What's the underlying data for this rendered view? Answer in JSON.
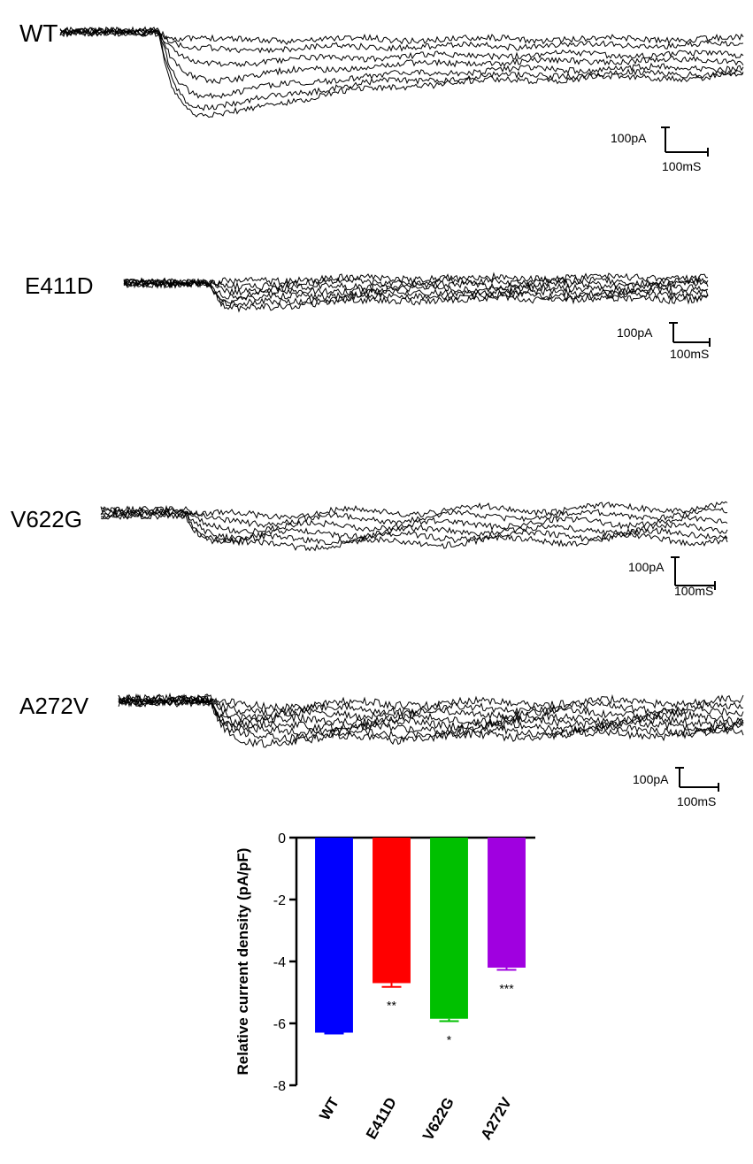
{
  "traces": [
    {
      "label": "WT",
      "scale_current": "100pA",
      "scale_time": "100mS"
    },
    {
      "label": "E411D",
      "scale_current": "100pA",
      "scale_time": "100mS"
    },
    {
      "label": "V622G",
      "scale_current": "100pA",
      "scale_time": "100mS"
    },
    {
      "label": "A272V",
      "scale_current": "100pA",
      "scale_time": "100mS"
    }
  ],
  "chart_data": {
    "type": "bar",
    "categories": [
      "WT",
      "E411D",
      "V622G",
      "A272V"
    ],
    "values": [
      -6.3,
      -4.7,
      -5.85,
      -4.2
    ],
    "errors": [
      0.03,
      0.12,
      0.08,
      0.07
    ],
    "significance": [
      "",
      "**",
      "*",
      "***"
    ],
    "colors": [
      "#0000ff",
      "#ff0000",
      "#00c000",
      "#a000e0"
    ],
    "xlabel": "",
    "ylabel": "Relative current density (pA/pF)",
    "ylim": [
      -8,
      0
    ],
    "yticks": [
      "0",
      "-2",
      "-4",
      "-6",
      "-8"
    ],
    "ytick_values": [
      0,
      -2,
      -4,
      -6,
      -8
    ]
  }
}
